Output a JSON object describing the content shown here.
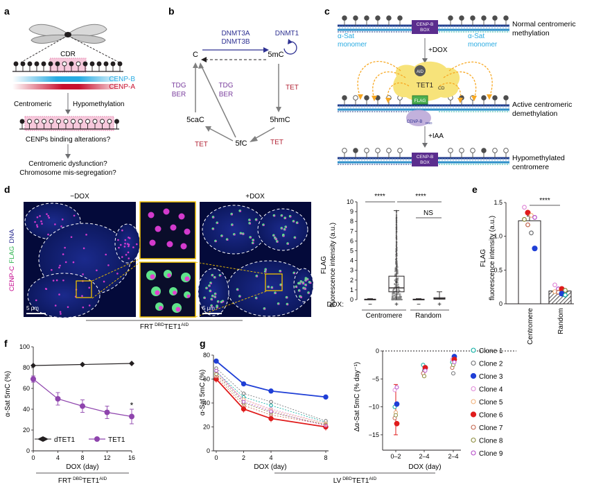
{
  "panel_labels": [
    "a",
    "b",
    "c",
    "d",
    "e",
    "f",
    "g"
  ],
  "colors": {
    "navy": "#2e3192",
    "magenta": "#c2008a",
    "red": "#c8102e",
    "cyan": "#29abe2",
    "purple": "#7b3f9e",
    "tet_red": "#b22234",
    "gray": "#6d6e71",
    "teal": "#00a99d",
    "gold": "#f7e37a"
  },
  "panel_a": {
    "cdr": "CDR",
    "cenp_b": "CENP-B",
    "cenp_a": "CENP-A",
    "centromeric": "Centromeric",
    "hypomethylation": "Hypomethylation",
    "question1": "CENPs binding alterations?",
    "question2": "Centromeric dysfunction?",
    "question3": "Chromosome mis-segregation?"
  },
  "panel_b": {
    "dnmt3a": "DNMT3A",
    "dnmt3b": "DNMT3B",
    "dnmt1": "DNMT1",
    "c": "C",
    "5mc": "5mC",
    "5hmc": "5hmC",
    "5fc": "5fC",
    "5cac": "5caC",
    "tet": "TET",
    "tdg": "TDG",
    "ber": "BER"
  },
  "panel_c": {
    "box": "CENP-B\nBOX",
    "box1": "CENP-B",
    "box2": "BOX",
    "alpha_sat": "α-Sat",
    "monomer": "monomer",
    "dox": "+DOX",
    "iaa": "+IAA",
    "aid": "AID",
    "tet1": "TET1",
    "cd": "CD",
    "flag": "FLAG",
    "cenpb_dbd": "CENP-B",
    "dbd": "DBD",
    "normal1": "Normal centromeric",
    "normal2": "methylation",
    "active1": "Active centromeric",
    "active2": "demethylation",
    "hypo1": "Hypomethylated",
    "hypo2": "centromere"
  },
  "panel_d": {
    "minus_dox": "−DOX",
    "plus_dox": "+DOX",
    "cenp_c": "CENP-C",
    "flag": "FLAG",
    "dna": "DNA",
    "scale": "5 μm",
    "construct": "FRT",
    "construct_sup": "DBD",
    "construct_main": "TET1",
    "construct_aid": "AID",
    "sig1": "****",
    "sig2": "****",
    "ns": "NS",
    "ylabel1": "FLAG",
    "ylabel2": "fluorescence intensity (a.u.)",
    "dox_label": "DOX:",
    "minus": "−",
    "plus": "+",
    "group1": "Centromere",
    "group2": "Random",
    "yticks": [
      "0",
      "1",
      "2",
      "3",
      "4",
      "5",
      "6",
      "7",
      "8",
      "9",
      "10"
    ]
  },
  "chart_data": [
    {
      "id": "d_boxplot",
      "type": "box",
      "ylabel": "FLAG fluorescence intensity (a.u.)",
      "ylim": [
        0,
        10
      ],
      "groups": [
        {
          "name": "Centromere",
          "dox": "−",
          "median": 0.02,
          "q1": 0.0,
          "q3": 0.05,
          "min": 0.0,
          "max": 0.1
        },
        {
          "name": "Centromere",
          "dox": "+",
          "median": 1.2,
          "q1": 0.8,
          "q3": 2.4,
          "min": 0.0,
          "max": 9.1,
          "mean": 1.8
        },
        {
          "name": "Random",
          "dox": "−",
          "median": 0.02,
          "q1": 0.0,
          "q3": 0.05,
          "min": 0.0,
          "max": 0.1
        },
        {
          "name": "Random",
          "dox": "+",
          "median": 0.1,
          "q1": 0.05,
          "q3": 0.2,
          "min": 0.0,
          "max": 0.8
        }
      ]
    },
    {
      "id": "e_bar",
      "type": "bar",
      "ylabel": "FLAG fluorescence intensity (a.u.)",
      "ylim": [
        0,
        1.5
      ],
      "yticks": [
        "0",
        "0.5",
        "1.0",
        "1.5"
      ],
      "categories": [
        "Centromere",
        "Random"
      ],
      "values": [
        1.23,
        0.19
      ],
      "errors": [
        0.07,
        0.02
      ],
      "significance": "****",
      "points": [
        [
          1.43,
          1.35,
          1.31,
          1.28,
          1.25,
          1.17,
          1.05,
          0.82
        ],
        [
          0.28,
          0.22,
          0.22,
          0.2,
          0.18,
          0.17,
          0.15,
          0.13
        ]
      ]
    },
    {
      "id": "f_line",
      "type": "line",
      "xlabel": "DOX (day)",
      "ylabel": "α-Sat 5mC (%)",
      "xlim": [
        0,
        16
      ],
      "ylim": [
        0,
        100
      ],
      "xticks": [
        "0",
        "4",
        "8",
        "12",
        "16"
      ],
      "yticks": [
        "0",
        "20",
        "40",
        "60",
        "80",
        "100"
      ],
      "annotation": "*",
      "series": [
        {
          "name": "dTET1",
          "x": [
            0,
            8,
            16
          ],
          "y": [
            82,
            83,
            84
          ]
        },
        {
          "name": "TET1",
          "x": [
            0,
            4,
            8,
            12,
            16
          ],
          "y": [
            69,
            50,
            43,
            37,
            33
          ],
          "err": [
            3,
            6,
            6,
            6,
            7
          ]
        }
      ]
    },
    {
      "id": "g_line",
      "type": "line",
      "xlabel": "DOX (day)",
      "ylabel": "α-Sat 5mC (%)",
      "xlim": [
        0,
        8
      ],
      "ylim": [
        0,
        80
      ],
      "xticks": [
        "0",
        "2",
        "4",
        "8"
      ],
      "yticks": [
        "0",
        "20",
        "40",
        "60",
        "80"
      ],
      "series": [
        {
          "name": "Clone 1",
          "x": [
            0,
            2,
            4,
            8
          ],
          "y": [
            66,
            45,
            38,
            24
          ]
        },
        {
          "name": "Clone 2",
          "x": [
            0,
            2,
            4,
            8
          ],
          "y": [
            69,
            48,
            41,
            25
          ]
        },
        {
          "name": "Clone 3",
          "x": [
            0,
            2,
            4,
            8
          ],
          "y": [
            75,
            56,
            50,
            45
          ]
        },
        {
          "name": "Clone 4",
          "x": [
            0,
            2,
            4,
            8
          ],
          "y": [
            64,
            43,
            35,
            23
          ]
        },
        {
          "name": "Clone 5",
          "x": [
            0,
            2,
            4,
            8
          ],
          "y": [
            65,
            43,
            34,
            23
          ]
        },
        {
          "name": "Clone 6",
          "x": [
            0,
            2,
            4,
            8
          ],
          "y": [
            60,
            35,
            27,
            20
          ]
        },
        {
          "name": "Clone 7",
          "x": [
            0,
            2,
            4,
            8
          ],
          "y": [
            62,
            38,
            30,
            22
          ]
        },
        {
          "name": "Clone 8",
          "x": [
            0,
            2,
            4,
            8
          ],
          "y": [
            64,
            40,
            32,
            22
          ]
        },
        {
          "name": "Clone 9",
          "x": [
            0,
            2,
            4,
            8
          ],
          "y": [
            67,
            41,
            33,
            21
          ]
        }
      ]
    },
    {
      "id": "g_rate",
      "type": "scatter",
      "xlabel": "DOX (day)",
      "ylabel": "Δα-Sat 5mC (% day⁻¹)",
      "ylim": [
        -17,
        0
      ],
      "yticks": [
        "0",
        "−5",
        "−10",
        "−15"
      ],
      "categories": [
        "0–2",
        "2–4",
        "2–4"
      ],
      "series": [
        {
          "name": "Clone 1",
          "values": [
            -10,
            -2.5,
            -2.0
          ]
        },
        {
          "name": "Clone 2",
          "values": [
            -11,
            -3.5,
            -4.0
          ]
        },
        {
          "name": "Clone 3",
          "values": [
            -9.5,
            -3.0,
            -1.0
          ]
        },
        {
          "name": "Clone 4",
          "values": [
            -7,
            -4.0,
            -1.5
          ]
        },
        {
          "name": "Clone 5",
          "values": [
            -11,
            -4.5,
            -1.5
          ]
        },
        {
          "name": "Clone 6",
          "values": [
            -13,
            -3.0,
            -1.5
          ]
        },
        {
          "name": "Clone 7",
          "values": [
            -12,
            -4.0,
            -3.0
          ]
        },
        {
          "name": "Clone 8",
          "values": [
            -11.5,
            -4.5,
            -2.5
          ]
        },
        {
          "name": "Clone 9",
          "values": [
            -6.5,
            -3.5,
            -2.0
          ]
        }
      ],
      "mean": [
        -10.5,
        -3.5,
        -2.0
      ],
      "err": [
        4.5,
        1.0,
        1.0
      ]
    }
  ],
  "panel_f": {
    "xlabel": "DOX (day)",
    "ylabel": "α-Sat 5mC (%)",
    "legend1": "dTET1",
    "legend2": "TET1",
    "star": "*",
    "construct": "FRT",
    "construct_sup": "DBD",
    "construct_main": "TET1",
    "construct_aid": "AID"
  },
  "panel_g": {
    "xlabel": "DOX (day)",
    "ylabel": "α-Sat 5mC (%)",
    "xlabel2": "DOX (day)",
    "ylabel2": "Δα-Sat 5mC (% day⁻¹)",
    "construct": "LV",
    "construct_sup": "DBD",
    "construct_main": "TET1",
    "construct_aid": "AID"
  },
  "clones": [
    {
      "name": "Clone 1",
      "color": "#00a99d",
      "filled": false
    },
    {
      "name": "Clone 2",
      "color": "#6d6e71",
      "filled": false
    },
    {
      "name": "Clone 3",
      "color": "#1f3fd6",
      "filled": true
    },
    {
      "name": "Clone 4",
      "color": "#e08bd8",
      "filled": false
    },
    {
      "name": "Clone 5",
      "color": "#f0b27a",
      "filled": false
    },
    {
      "name": "Clone 6",
      "color": "#e01b1b",
      "filled": true
    },
    {
      "name": "Clone 7",
      "color": "#c0634b",
      "filled": false
    },
    {
      "name": "Clone 8",
      "color": "#8a8a3a",
      "filled": false
    },
    {
      "name": "Clone 9",
      "color": "#b44ac8",
      "filled": false
    }
  ]
}
